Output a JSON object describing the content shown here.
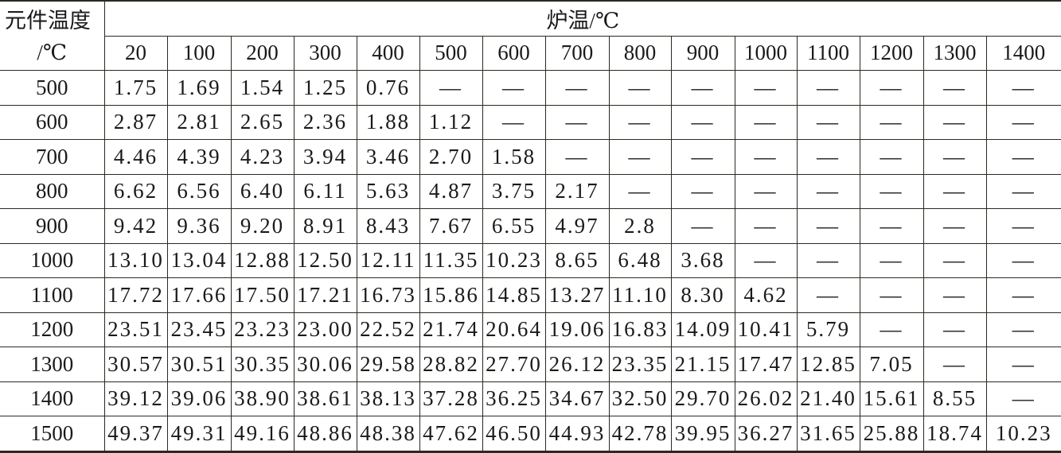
{
  "table": {
    "corner_top": "元件温度",
    "corner_bottom": "/℃",
    "group_header": "炉温/℃",
    "columns": [
      "20",
      "100",
      "200",
      "300",
      "400",
      "500",
      "600",
      "700",
      "800",
      "900",
      "1000",
      "1100",
      "1200",
      "1300",
      "1400"
    ],
    "rows": [
      {
        "label": "500",
        "values": [
          "1.75",
          "1.69",
          "1.54",
          "1.25",
          "0.76",
          "—",
          "—",
          "—",
          "—",
          "—",
          "—",
          "—",
          "—",
          "—",
          "—"
        ]
      },
      {
        "label": "600",
        "values": [
          "2.87",
          "2.81",
          "2.65",
          "2.36",
          "1.88",
          "1.12",
          "—",
          "—",
          "—",
          "—",
          "—",
          "—",
          "—",
          "—",
          "—"
        ]
      },
      {
        "label": "700",
        "values": [
          "4.46",
          "4.39",
          "4.23",
          "3.94",
          "3.46",
          "2.70",
          "1.58",
          "—",
          "—",
          "—",
          "—",
          "—",
          "—",
          "—",
          "—"
        ]
      },
      {
        "label": "800",
        "values": [
          "6.62",
          "6.56",
          "6.40",
          "6.11",
          "5.63",
          "4.87",
          "3.75",
          "2.17",
          "—",
          "—",
          "—",
          "—",
          "—",
          "—",
          "—"
        ]
      },
      {
        "label": "900",
        "values": [
          "9.42",
          "9.36",
          "9.20",
          "8.91",
          "8.43",
          "7.67",
          "6.55",
          "4.97",
          "2.8",
          "—",
          "—",
          "—",
          "—",
          "—",
          "—"
        ]
      },
      {
        "label": "1000",
        "values": [
          "13.10",
          "13.04",
          "12.88",
          "12.50",
          "12.11",
          "11.35",
          "10.23",
          "8.65",
          "6.48",
          "3.68",
          "—",
          "—",
          "—",
          "—",
          "—"
        ]
      },
      {
        "label": "1100",
        "values": [
          "17.72",
          "17.66",
          "17.50",
          "17.21",
          "16.73",
          "15.86",
          "14.85",
          "13.27",
          "11.10",
          "8.30",
          "4.62",
          "—",
          "—",
          "—",
          "—"
        ]
      },
      {
        "label": "1200",
        "values": [
          "23.51",
          "23.45",
          "23.23",
          "23.00",
          "22.52",
          "21.74",
          "20.64",
          "19.06",
          "16.83",
          "14.09",
          "10.41",
          "5.79",
          "—",
          "—",
          "—"
        ]
      },
      {
        "label": "1300",
        "values": [
          "30.57",
          "30.51",
          "30.35",
          "30.06",
          "29.58",
          "28.82",
          "27.70",
          "26.12",
          "23.35",
          "21.15",
          "17.47",
          "12.85",
          "7.05",
          "—",
          "—"
        ]
      },
      {
        "label": "1400",
        "values": [
          "39.12",
          "39.06",
          "38.90",
          "38.61",
          "38.13",
          "37.28",
          "36.25",
          "34.67",
          "32.50",
          "29.70",
          "26.02",
          "21.40",
          "15.61",
          "8.55",
          "—"
        ]
      },
      {
        "label": "1500",
        "values": [
          "49.37",
          "49.31",
          "49.16",
          "48.86",
          "48.38",
          "47.62",
          "46.50",
          "44.93",
          "42.78",
          "39.95",
          "36.27",
          "31.65",
          "25.88",
          "18.74",
          "10.23"
        ]
      }
    ]
  }
}
